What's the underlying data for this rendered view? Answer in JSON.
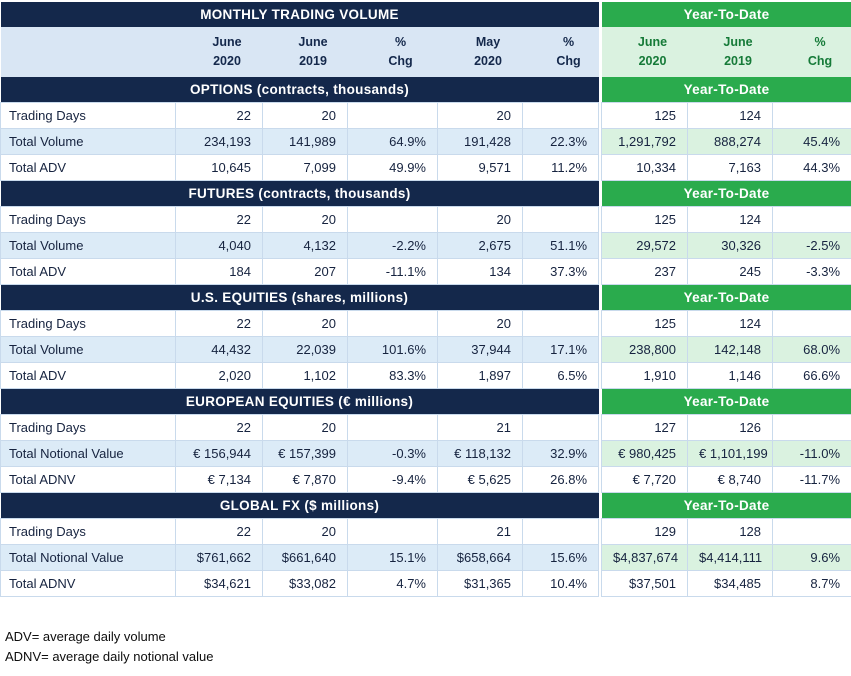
{
  "header": {
    "title": "MONTHLY TRADING VOLUME",
    "ytd_label": "Year-To-Date"
  },
  "columns": {
    "monthly": [
      "June\n2020",
      "June\n2019",
      "%\nChg",
      "May\n2020",
      "%\nChg"
    ],
    "ytd": [
      "June\n2020",
      "June\n2019",
      "%\nChg"
    ]
  },
  "sections": [
    {
      "title": "OPTIONS (contracts, thousands)",
      "ytd_label": "Year-To-Date",
      "rows": [
        {
          "label": "Trading Days",
          "monthly": [
            "22",
            "20",
            "",
            "20",
            ""
          ],
          "ytd": [
            "125",
            "124",
            ""
          ]
        },
        {
          "label": "Total Volume",
          "monthly": [
            "234,193",
            "141,989",
            "64.9%",
            "191,428",
            "22.3%"
          ],
          "ytd": [
            "1,291,792",
            "888,274",
            "45.4%"
          ]
        },
        {
          "label": "Total ADV",
          "monthly": [
            "10,645",
            "7,099",
            "49.9%",
            "9,571",
            "11.2%"
          ],
          "ytd": [
            "10,334",
            "7,163",
            "44.3%"
          ]
        }
      ]
    },
    {
      "title": "FUTURES (contracts, thousands)",
      "ytd_label": "Year-To-Date",
      "rows": [
        {
          "label": "Trading Days",
          "monthly": [
            "22",
            "20",
            "",
            "20",
            ""
          ],
          "ytd": [
            "125",
            "124",
            ""
          ]
        },
        {
          "label": "Total Volume",
          "monthly": [
            "4,040",
            "4,132",
            "-2.2%",
            "2,675",
            "51.1%"
          ],
          "ytd": [
            "29,572",
            "30,326",
            "-2.5%"
          ]
        },
        {
          "label": "Total ADV",
          "monthly": [
            "184",
            "207",
            "-11.1%",
            "134",
            "37.3%"
          ],
          "ytd": [
            "237",
            "245",
            "-3.3%"
          ]
        }
      ]
    },
    {
      "title": "U.S. EQUITIES (shares, millions)",
      "ytd_label": "Year-To-Date",
      "rows": [
        {
          "label": "Trading Days",
          "monthly": [
            "22",
            "20",
            "",
            "20",
            ""
          ],
          "ytd": [
            "125",
            "124",
            ""
          ]
        },
        {
          "label": "Total Volume",
          "monthly": [
            "44,432",
            "22,039",
            "101.6%",
            "37,944",
            "17.1%"
          ],
          "ytd": [
            "238,800",
            "142,148",
            "68.0%"
          ]
        },
        {
          "label": "Total ADV",
          "monthly": [
            "2,020",
            "1,102",
            "83.3%",
            "1,897",
            "6.5%"
          ],
          "ytd": [
            "1,910",
            "1,146",
            "66.6%"
          ]
        }
      ]
    },
    {
      "title": "EUROPEAN EQUITIES (€ millions)",
      "ytd_label": "Year-To-Date",
      "rows": [
        {
          "label": "Trading Days",
          "monthly": [
            "22",
            "20",
            "",
            "21",
            ""
          ],
          "ytd": [
            "127",
            "126",
            ""
          ]
        },
        {
          "label": "Total Notional Value",
          "monthly": [
            "€ 156,944",
            "€ 157,399",
            "-0.3%",
            "€ 118,132",
            "32.9%"
          ],
          "ytd": [
            "€ 980,425",
            "€ 1,101,199",
            "-11.0%"
          ]
        },
        {
          "label": "Total ADNV",
          "monthly": [
            "€ 7,134",
            "€ 7,870",
            "-9.4%",
            "€ 5,625",
            "26.8%"
          ],
          "ytd": [
            "€ 7,720",
            "€ 8,740",
            "-11.7%"
          ]
        }
      ]
    },
    {
      "title": "GLOBAL FX ($ millions)",
      "ytd_label": "Year-To-Date",
      "rows": [
        {
          "label": "Trading Days",
          "monthly": [
            "22",
            "20",
            "",
            "21",
            ""
          ],
          "ytd": [
            "129",
            "128",
            ""
          ]
        },
        {
          "label": "Total Notional Value",
          "monthly": [
            "$761,662",
            "$661,640",
            "15.1%",
            "$658,664",
            "15.6%"
          ],
          "ytd": [
            "$4,837,674",
            "$4,414,111",
            "9.6%"
          ]
        },
        {
          "label": "Total ADNV",
          "monthly": [
            "$34,621",
            "$33,082",
            "4.7%",
            "$31,365",
            "10.4%"
          ],
          "ytd": [
            "$37,501",
            "$34,485",
            "8.7%"
          ]
        }
      ]
    }
  ],
  "footnotes": [
    "ADV= average daily volume",
    "ADNV= average daily notional value"
  ],
  "colors": {
    "navy": "#14284b",
    "green": "#2aab4d",
    "light_blue": "#d9e6f4",
    "light_green": "#daf2e0",
    "row_blue": "#dcebf7",
    "dark_green_text": "#157a38"
  }
}
